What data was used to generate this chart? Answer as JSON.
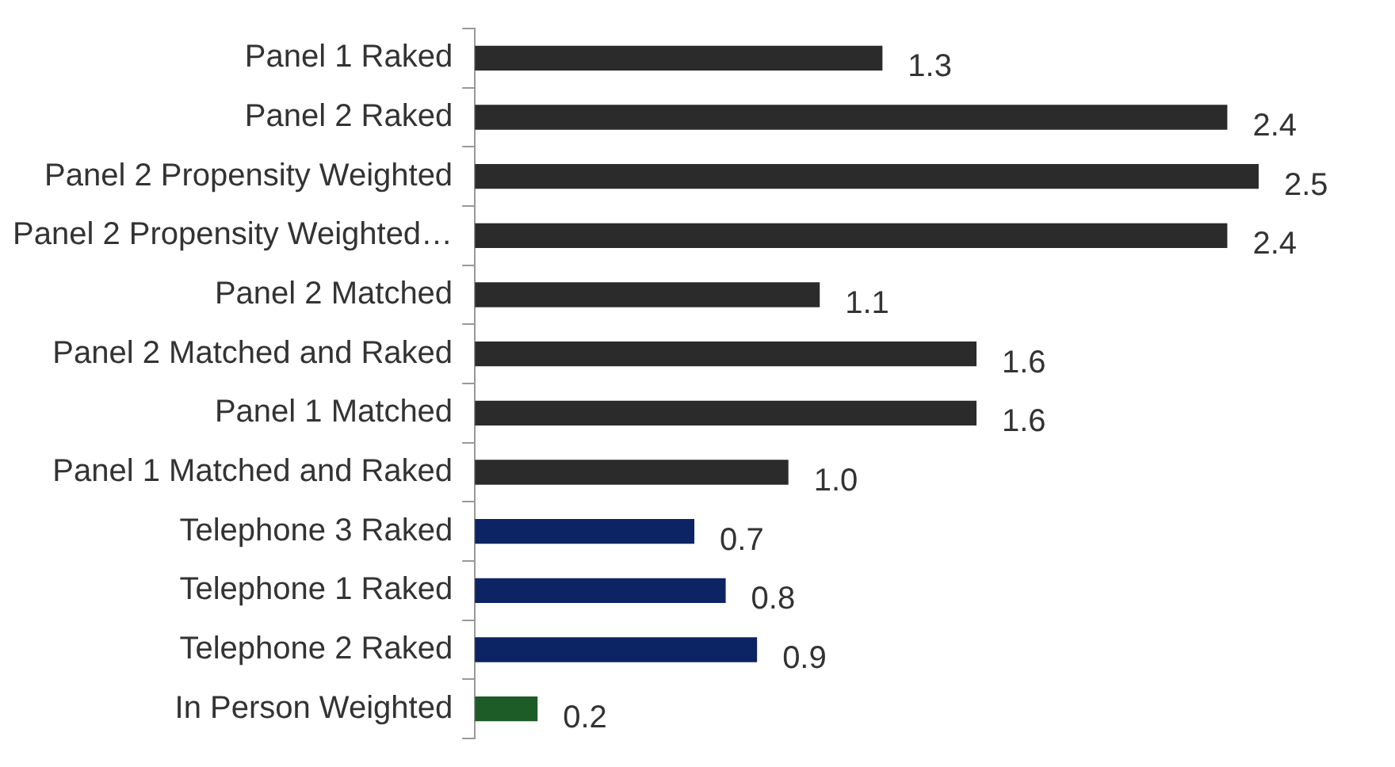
{
  "chart_data": {
    "type": "bar",
    "orientation": "horizontal",
    "categories": [
      "Panel 1 Raked",
      "Panel 2 Raked",
      "Panel 2 Propensity Weighted",
      "Panel 2 Propensity Weighted…",
      "Panel 2 Matched",
      "Panel 2 Matched and Raked",
      "Panel 1 Matched",
      "Panel 1 Matched and Raked",
      "Telephone 3 Raked",
      "Telephone 1 Raked",
      "Telephone 2 Raked",
      "In Person Weighted"
    ],
    "values": [
      1.3,
      2.4,
      2.5,
      2.4,
      1.1,
      1.6,
      1.6,
      1.0,
      0.7,
      0.8,
      0.9,
      0.2
    ],
    "value_labels": [
      "1.3",
      "2.4",
      "2.5",
      "2.4",
      "1.1",
      "1.6",
      "1.6",
      "1.0",
      "0.7",
      "0.8",
      "0.9",
      "0.2"
    ],
    "colors": [
      "#2b2b2b",
      "#2b2b2b",
      "#2b2b2b",
      "#2b2b2b",
      "#2b2b2b",
      "#2b2b2b",
      "#2b2b2b",
      "#2b2b2b",
      "#0c2464",
      "#0c2464",
      "#0c2464",
      "#1d5c26"
    ],
    "tick_labels": "y",
    "grid": false,
    "legend": false
  }
}
